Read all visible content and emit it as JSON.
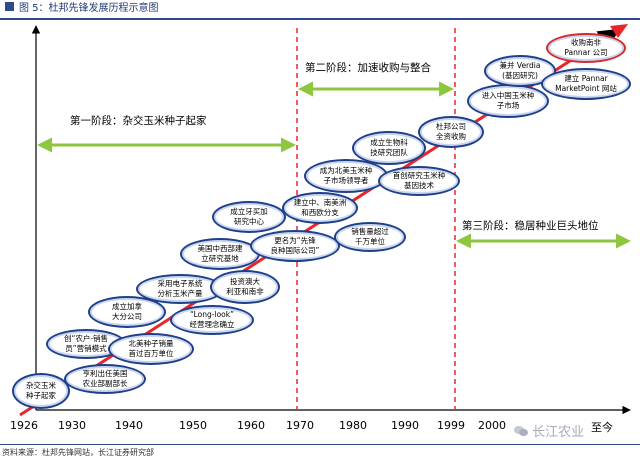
{
  "figure": {
    "label": "图 5：杜邦先锋发展历程示意图",
    "source": "资料来源：杜邦先锋网站，长江证券研究部",
    "watermark": "长江农业"
  },
  "axis": {
    "end_label": "至今",
    "ticks": [
      "1926",
      "1930",
      "1940",
      "1950",
      "1960",
      "1970",
      "1980",
      "1990",
      "1999",
      "2000"
    ]
  },
  "phases": {
    "p1": "第一阶段：杂交玉米种子起家",
    "p2": "第二阶段：加速收购与整合",
    "p3": "第三阶段：稳居种业巨头地位"
  },
  "events": [
    "杂交玉米\n种子起家",
    "亨利出任美国\n农业部副部长",
    "创“农户-销售\n员”营销模式",
    "北美种子销量\n首过百万单位",
    "成立加拿\n大分公司",
    "“Long-look”\n经营理念确立",
    "采用电子系统\n分析玉米产量",
    "投资澳大\n利亚和南非",
    "美国中西部建\n立研究基地",
    "成立牙买加\n研究中心",
    "更名为“先锋\n良种国际公司”",
    "建立中、南美洲\n和西欧分支",
    "销售量超过\n千万单位",
    "成为北美玉米种\n子市场领导者",
    "首创研究玉米种\n基因技术",
    "成立生物科\n技研究团队",
    "杜邦公司\n全资收购",
    "进入中国玉米种\n子市场",
    "兼并 Verdia\n(基因研究)",
    "建立 Pannar\nMarketPoint 网站",
    "收购南非\nPannar 公司"
  ]
}
